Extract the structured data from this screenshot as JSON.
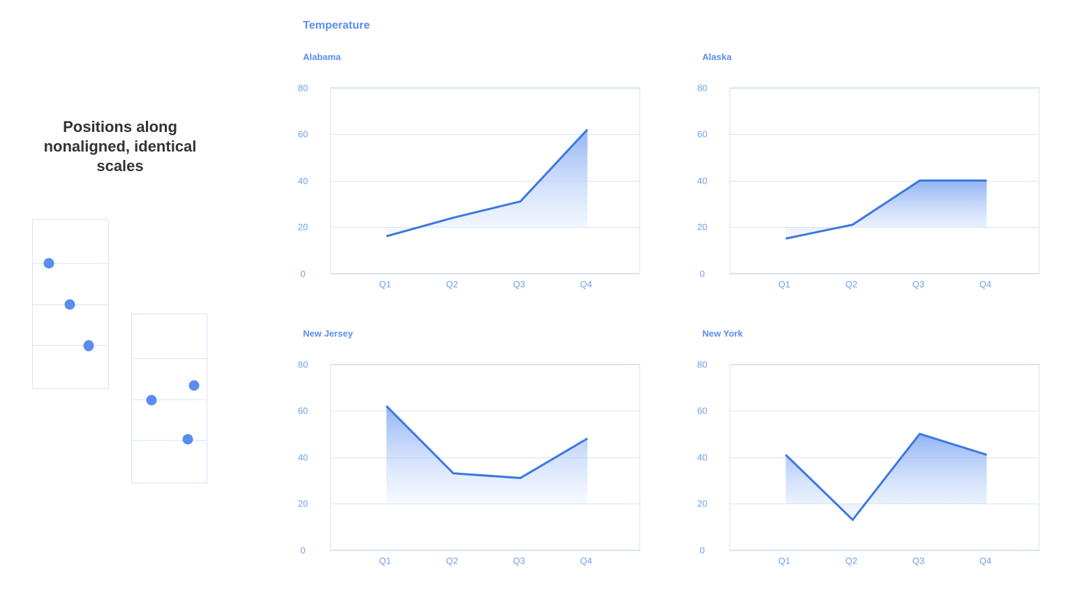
{
  "illustration": {
    "caption": "Positions along nonaligned, identical scales",
    "dot_color": "#5b8def"
  },
  "section": {
    "title": "Temperature"
  },
  "chart_data": [
    {
      "type": "area",
      "title": "Alabama",
      "categories": [
        "Q1",
        "Q2",
        "Q3",
        "Q4"
      ],
      "values": [
        16,
        24,
        31,
        62
      ],
      "ylim": [
        0,
        80
      ],
      "yticks": [
        0,
        20,
        40,
        60,
        80
      ],
      "grid": true,
      "color": "#3a78e0"
    },
    {
      "type": "area",
      "title": "Alaska",
      "categories": [
        "Q1",
        "Q2",
        "Q3",
        "Q4"
      ],
      "values": [
        15,
        21,
        40,
        40
      ],
      "ylim": [
        0,
        80
      ],
      "yticks": [
        0,
        20,
        40,
        60,
        80
      ],
      "grid": true,
      "color": "#3a78e0"
    },
    {
      "type": "area",
      "title": "New Jersey",
      "categories": [
        "Q1",
        "Q2",
        "Q3",
        "Q4"
      ],
      "values": [
        62,
        33,
        31,
        48
      ],
      "ylim": [
        0,
        80
      ],
      "yticks": [
        0,
        20,
        40,
        60,
        80
      ],
      "grid": true,
      "color": "#3a78e0"
    },
    {
      "type": "area",
      "title": "New York",
      "categories": [
        "Q1",
        "Q2",
        "Q3",
        "Q4"
      ],
      "values": [
        41,
        13,
        50,
        41
      ],
      "ylim": [
        0,
        80
      ],
      "yticks": [
        0,
        20,
        40,
        60,
        80
      ],
      "grid": true,
      "color": "#3a78e0"
    }
  ]
}
